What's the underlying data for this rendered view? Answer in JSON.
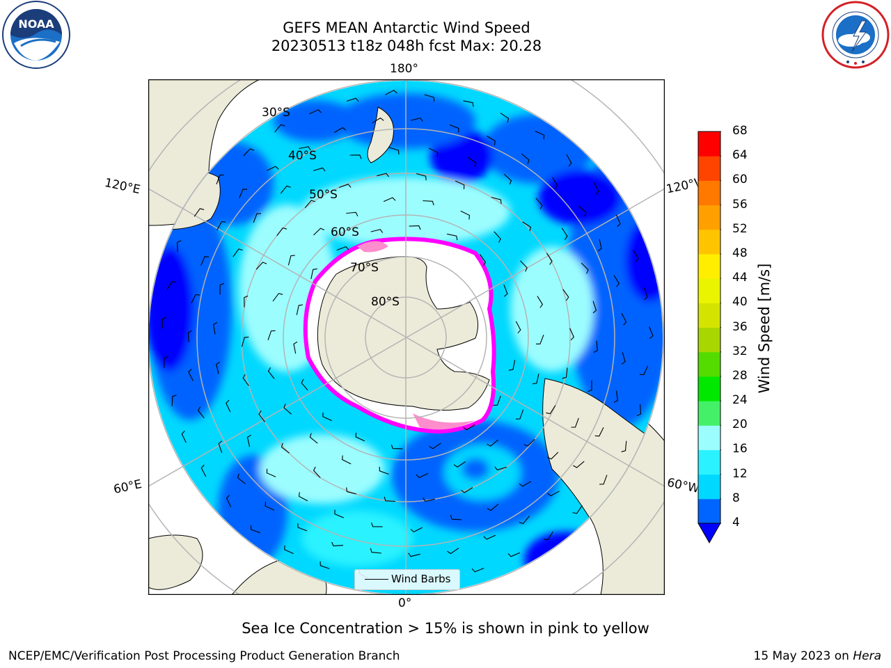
{
  "header": {
    "title_line1": "GEFS MEAN Antarctic Wind Speed",
    "title_line2": "20230513 t18z 048h fcst   Max: 20.28"
  },
  "logos": {
    "left": {
      "text": "NOAA",
      "ring_text": "NATIONAL OCEANIC AND ATMOSPHERIC ADMINISTRATION · U.S. DEPARTMENT OF COMMERCE"
    },
    "right": {
      "ring_text": "NATIONAL WEATHER SERVICE"
    }
  },
  "map": {
    "projection": "south polar stereographic",
    "longitude_labels": {
      "top": "180°",
      "bottom": "0°",
      "upper_left": "120°E",
      "lower_left": "60°E",
      "upper_right": "120°W",
      "lower_right": "60°W"
    },
    "latitude_labels": [
      "30°S",
      "40°S",
      "50°S",
      "60°S",
      "70°S",
      "80°S"
    ],
    "legend_label": "Wind Barbs"
  },
  "colorbar": {
    "title": "Wind Speed [m/s]",
    "ticks": [
      "4",
      "8",
      "12",
      "16",
      "20",
      "24",
      "28",
      "32",
      "36",
      "40",
      "44",
      "48",
      "52",
      "56",
      "60",
      "64",
      "68"
    ],
    "colors": [
      "#0000ff",
      "#0064ff",
      "#00d8ff",
      "#2af2ff",
      "#9cfdff",
      "#44f068",
      "#00e800",
      "#54dc00",
      "#a8d600",
      "#d4e400",
      "#eaf400",
      "#ffee00",
      "#ffc400",
      "#ffa000",
      "#ff7800",
      "#ff4400",
      "#ff0000"
    ],
    "extend": "min"
  },
  "colors": {
    "land": "#ecebd9",
    "ocean_deep_blue": "#0000ff",
    "ocean_blue": "#0064ff",
    "ocean_cyan": "#00e0ff",
    "ocean_light_cyan": "#9cfdff",
    "ice_edge": "#ff00ff",
    "grid": "#b4b4b4"
  },
  "footer": {
    "subtitle": "Sea Ice Concentration > 15% is shown in pink to yellow",
    "left": "NCEP/EMC/Verification Post Processing Product Generation Branch",
    "right_prefix": "15 May 2023 on ",
    "right_machine": "Hera"
  }
}
